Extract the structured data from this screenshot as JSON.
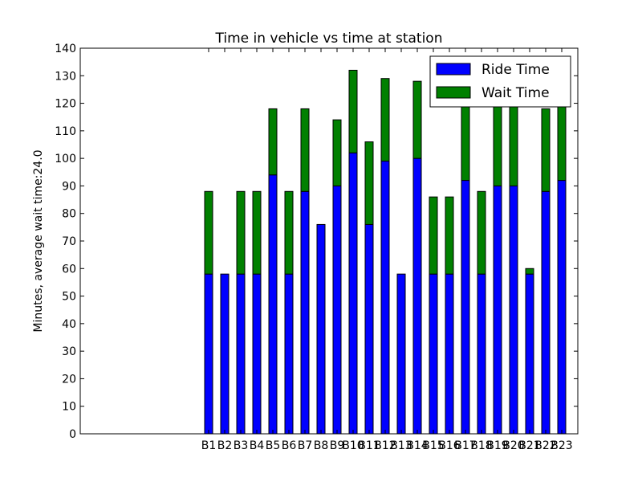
{
  "chart_data": {
    "type": "bar",
    "stacked": true,
    "title": "Time in vehicle vs time at station",
    "xlabel": "",
    "ylabel": "Minutes, average wait time:24.0",
    "ylim": [
      0,
      140
    ],
    "yticks": [
      0,
      10,
      20,
      30,
      40,
      50,
      60,
      70,
      80,
      90,
      100,
      110,
      120,
      130,
      140
    ],
    "xlim": [
      -7,
      24
    ],
    "categories": [
      "B1",
      "B2",
      "B3",
      "B4",
      "B5",
      "B6",
      "B7",
      "B8",
      "B9",
      "B10",
      "B11",
      "B12",
      "B13",
      "B14",
      "B15",
      "B16",
      "B17",
      "B18",
      "B19",
      "B20",
      "B21",
      "B22",
      "B23"
    ],
    "series": [
      {
        "name": "Ride Time",
        "color": "#0000ff",
        "values": [
          58,
          58,
          58,
          58,
          94,
          58,
          88,
          76,
          90,
          102,
          76,
          99,
          58,
          100,
          58,
          58,
          92,
          58,
          90,
          90,
          58,
          88,
          92
        ]
      },
      {
        "name": "Wait Time",
        "color": "#008000",
        "values": [
          30,
          0,
          30,
          30,
          24,
          30,
          30,
          0,
          24,
          30,
          30,
          30,
          0,
          28,
          28,
          28,
          30,
          30,
          30,
          30,
          2,
          30,
          30
        ]
      }
    ],
    "grid": false,
    "legend": "top-right"
  }
}
